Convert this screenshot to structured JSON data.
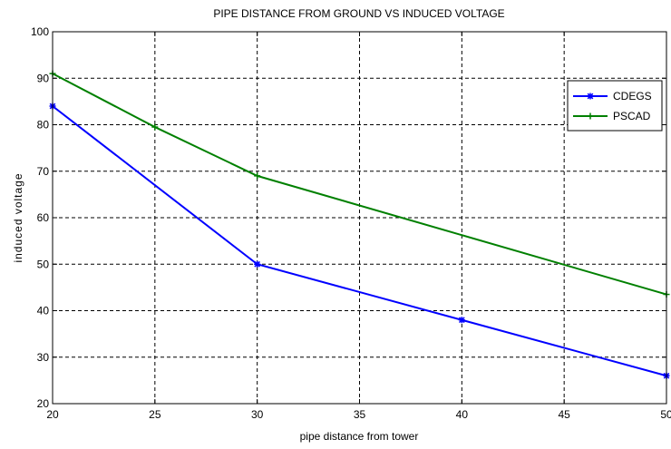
{
  "chart_data": {
    "type": "line",
    "title": "PIPE DISTANCE FROM GROUND VS INDUCED VOLTAGE",
    "xlabel": "pipe distance from tower",
    "ylabel": "induced voltage",
    "xlim": [
      20,
      50
    ],
    "ylim": [
      20,
      100
    ],
    "xticks": [
      20,
      25,
      30,
      35,
      40,
      45,
      50
    ],
    "yticks": [
      20,
      30,
      40,
      50,
      60,
      70,
      80,
      90,
      100
    ],
    "grid": true,
    "legend_position": "top-right",
    "series": [
      {
        "name": "CDEGS",
        "color": "#0000ff",
        "marker": "star",
        "x": [
          20,
          30,
          40,
          50
        ],
        "y": [
          84,
          50,
          38,
          26
        ]
      },
      {
        "name": "PSCAD",
        "color": "#008000",
        "marker": "plus",
        "x": [
          20,
          25,
          30,
          50
        ],
        "y": [
          91,
          79.5,
          69,
          43.5
        ]
      }
    ]
  }
}
